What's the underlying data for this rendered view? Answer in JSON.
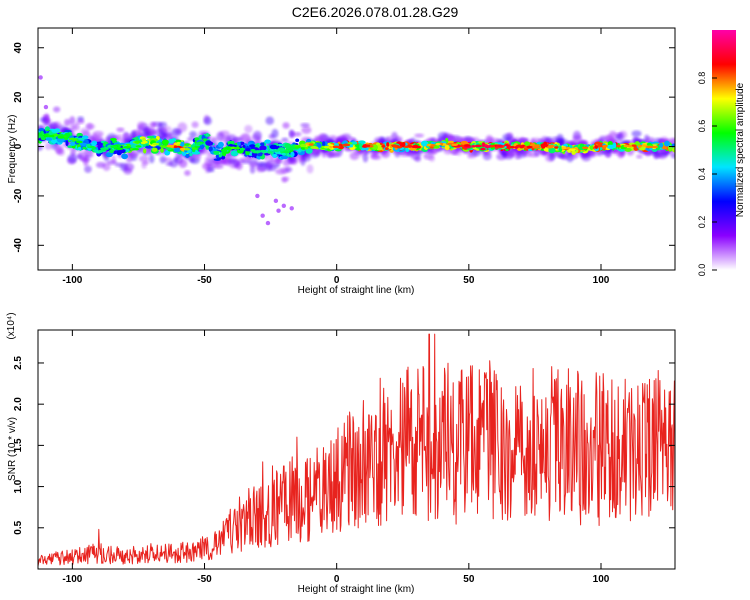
{
  "figure": {
    "title": "C2E6.2026.078.01.28.G29"
  },
  "chart_data": [
    {
      "type": "heatmap",
      "title": "",
      "xlabel": "Height of straight line (km)",
      "ylabel": "Frequency (Hz)",
      "xlim": [
        -113,
        128
      ],
      "ylim": [
        -50,
        48
      ],
      "xticks": [
        -100,
        -50,
        0,
        50,
        100
      ],
      "yticks": [
        -40,
        -20,
        0,
        20,
        40
      ],
      "colorbar": {
        "label": "Normalized spectral amplitude",
        "range": [
          0,
          1
        ],
        "ticks": [
          0,
          0.2,
          0.4,
          0.6,
          0.8
        ],
        "tick_labels": [
          "0.0",
          "0.2",
          "0.4",
          "0.6",
          "0.8"
        ],
        "colors": [
          "#ffffff",
          "#8a00ff",
          "#0000ff",
          "#00e5ff",
          "#00ff00",
          "#ffff00",
          "#ff0000",
          "#ff00a8"
        ]
      },
      "band": [
        {
          "x": -113,
          "f": 5,
          "a": 0.55
        },
        {
          "x": -105,
          "f": 4,
          "a": 0.6
        },
        {
          "x": -100,
          "f": 3,
          "a": 0.58
        },
        {
          "x": -95,
          "f": 1,
          "a": 0.55
        },
        {
          "x": -90,
          "f": -2,
          "a": 0.5
        },
        {
          "x": -85,
          "f": 0,
          "a": 0.55
        },
        {
          "x": -80,
          "f": -1,
          "a": 0.6
        },
        {
          "x": -75,
          "f": 2,
          "a": 0.65
        },
        {
          "x": -70,
          "f": 1,
          "a": 0.7
        },
        {
          "x": -65,
          "f": 0,
          "a": 0.65
        },
        {
          "x": -60,
          "f": 0,
          "a": 0.85
        },
        {
          "x": -55,
          "f": -2,
          "a": 0.6
        },
        {
          "x": -50,
          "f": 3,
          "a": 0.55
        },
        {
          "x": -45,
          "f": -3,
          "a": 0.55
        },
        {
          "x": -40,
          "f": 0,
          "a": 0.6
        },
        {
          "x": -35,
          "f": -1,
          "a": 0.55
        },
        {
          "x": -30,
          "f": -2,
          "a": 0.5
        },
        {
          "x": -25,
          "f": -1,
          "a": 0.5
        },
        {
          "x": -20,
          "f": -3,
          "a": 0.5
        },
        {
          "x": -15,
          "f": 0,
          "a": 0.6
        },
        {
          "x": -10,
          "f": 1,
          "a": 0.8
        },
        {
          "x": -5,
          "f": 0,
          "a": 0.65
        },
        {
          "x": 0,
          "f": 0,
          "a": 0.85
        },
        {
          "x": 5,
          "f": 1,
          "a": 0.8
        },
        {
          "x": 10,
          "f": 0,
          "a": 0.85
        },
        {
          "x": 20,
          "f": 0,
          "a": 0.85
        },
        {
          "x": 30,
          "f": 0,
          "a": 0.85
        },
        {
          "x": 40,
          "f": 1,
          "a": 0.8
        },
        {
          "x": 50,
          "f": 0,
          "a": 0.9
        },
        {
          "x": 60,
          "f": 0,
          "a": 0.9
        },
        {
          "x": 70,
          "f": 0,
          "a": 0.85
        },
        {
          "x": 80,
          "f": 0,
          "a": 0.85
        },
        {
          "x": 90,
          "f": -1,
          "a": 0.75
        },
        {
          "x": 100,
          "f": 0,
          "a": 0.85
        },
        {
          "x": 110,
          "f": 0,
          "a": 0.85
        },
        {
          "x": 120,
          "f": 0,
          "a": 0.8
        },
        {
          "x": 128,
          "f": 0,
          "a": 0.75
        }
      ],
      "scatter_tail": [
        {
          "x": -28,
          "f": -28
        },
        {
          "x": -26,
          "f": -31
        },
        {
          "x": -23,
          "f": -22
        },
        {
          "x": -22,
          "f": -26
        },
        {
          "x": -20,
          "f": -24
        },
        {
          "x": -30,
          "f": -20
        },
        {
          "x": -17,
          "f": -25
        },
        {
          "x": -112,
          "f": 28
        },
        {
          "x": -110,
          "f": 16
        }
      ]
    },
    {
      "type": "line",
      "title": "",
      "xlabel": "Height of straight line (km)",
      "ylabel": "SNR (10 * v/v)",
      "y_multiplier": "(x10⁴)",
      "xlim": [
        -113,
        128
      ],
      "ylim": [
        0,
        2.9
      ],
      "xticks": [
        -100,
        -50,
        0,
        50,
        100
      ],
      "yticks": [
        0.5,
        1.0,
        1.5,
        2.0,
        2.5
      ],
      "color": "#e8231e",
      "series": [
        {
          "x": [
            -113,
            -100,
            -90,
            -80,
            -70,
            -60,
            -50,
            -45,
            -40,
            -35,
            -30,
            -25,
            -20,
            -15,
            -10,
            -5,
            0,
            5,
            10,
            15,
            20,
            25,
            30,
            35,
            40,
            45,
            50,
            55,
            60,
            65,
            70,
            75,
            80,
            85,
            90,
            95,
            100,
            105,
            110,
            115,
            120,
            128
          ],
          "y": [
            0.1,
            0.15,
            0.2,
            0.15,
            0.2,
            0.2,
            0.25,
            0.3,
            0.5,
            0.6,
            0.65,
            0.75,
            0.8,
            0.9,
            0.9,
            1.0,
            1.1,
            1.2,
            1.3,
            1.35,
            1.45,
            1.5,
            1.55,
            1.6,
            1.6,
            1.55,
            1.55,
            1.6,
            1.6,
            1.6,
            1.55,
            1.55,
            1.55,
            1.5,
            1.5,
            1.5,
            1.5,
            1.5,
            1.5,
            1.45,
            1.45,
            1.45
          ],
          "peaks": [
            {
              "x": -90,
              "y": 0.48
            },
            {
              "x": -28,
              "y": 1.3
            },
            {
              "x": -20,
              "y": 1.25
            },
            {
              "x": -15,
              "y": 1.6
            },
            {
              "x": 27,
              "y": 2.45
            },
            {
              "x": 35,
              "y": 2.85
            },
            {
              "x": 37,
              "y": 2.85
            },
            {
              "x": 41,
              "y": 2.35
            },
            {
              "x": 57,
              "y": 2.3
            }
          ]
        }
      ]
    }
  ]
}
